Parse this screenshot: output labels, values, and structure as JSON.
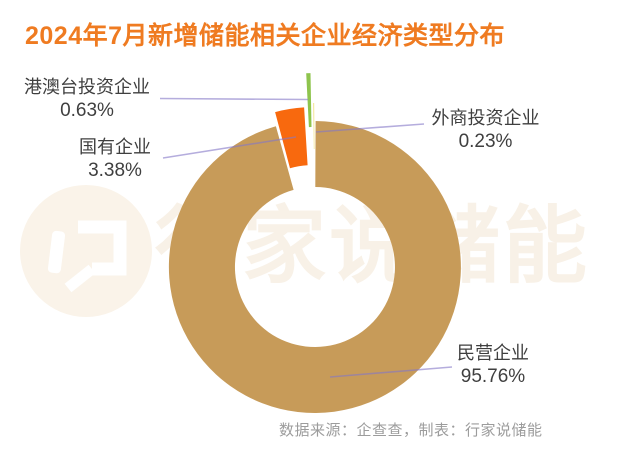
{
  "header": {
    "title": "2024年7月新增储能相关企业经济类型分布"
  },
  "chart_data": {
    "type": "pie",
    "subtype": "donut",
    "title": "2024年7月新增储能相关企业经济类型分布",
    "categories": [
      "民营企业",
      "国有企业",
      "港澳台投资企业",
      "外商投资企业"
    ],
    "values": [
      95.76,
      3.38,
      0.63,
      0.23
    ],
    "value_labels": [
      "95.76%",
      "3.38%",
      "0.63%",
      "0.23%"
    ],
    "colors": [
      "#c79b59",
      "#f8690e",
      "#8ec44d",
      "#e9d13f"
    ],
    "leader_line_color": "#8478c8",
    "start_angle_deg": 0,
    "direction": "clockwise",
    "legend_position": "none",
    "exploded_slices": [
      "国有企业",
      "港澳台投资企业",
      "外商投资企业"
    ]
  },
  "callouts": [
    {
      "id": "hmt",
      "name": "港澳台投资企业",
      "value": "0.63%"
    },
    {
      "id": "soe",
      "name": "国有企业",
      "value": "3.38%"
    },
    {
      "id": "foreign",
      "name": "外商投资企业",
      "value": "0.23%"
    },
    {
      "id": "private",
      "name": "民营企业",
      "value": "95.76%"
    }
  ],
  "footer": {
    "source_note": "数据来源：企查查，制表：行家说储能"
  },
  "watermark": {
    "text": "行家说储能"
  },
  "colors": {
    "title_text": "#ef7b21",
    "label_text": "#3f3f3f",
    "footer_text": "#9c9c9c",
    "watermark_text": "#f8f1e7",
    "watermark_logo_bg": "#faf3e9",
    "background": "#ffffff"
  }
}
